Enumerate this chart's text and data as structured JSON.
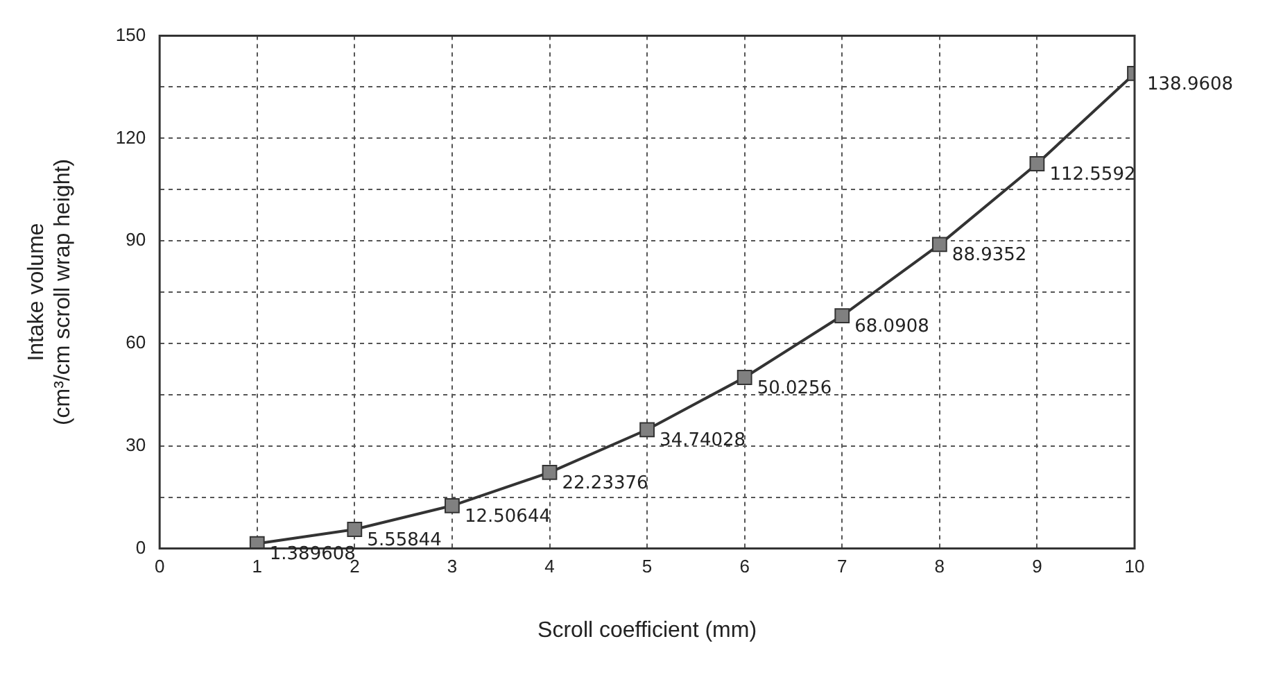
{
  "chart_data": {
    "type": "line",
    "xlabel": "Scroll coefficient (mm)",
    "ylabel": "Intake volume\n(cm³/cm scroll wrap height)",
    "x": [
      1,
      2,
      3,
      4,
      5,
      6,
      7,
      8,
      9,
      10
    ],
    "series": [
      {
        "color": "#808080",
        "values": [
          1.389608,
          5.55844,
          12.50644,
          22.23376,
          34.74028,
          50.0256,
          68.0908,
          88.9352,
          112.5592,
          138.9608
        ]
      }
    ],
    "xlim": [
      0,
      10
    ],
    "xticks": [
      0,
      1,
      2,
      3,
      4,
      5,
      6,
      7,
      8,
      9,
      10
    ],
    "ylim": [
      0,
      150
    ],
    "yticks": [
      0,
      {
        "value": 15,
        "label": null
      },
      30,
      {
        "value": 45,
        "label": null
      },
      60,
      {
        "value": 75,
        "label": null
      },
      90,
      {
        "value": 105,
        "label": null
      },
      120,
      {
        "value": 135,
        "label": null
      },
      150
    ],
    "grid": true,
    "legend": false,
    "marker": "square",
    "line_style": "solid",
    "data_labels": true
  }
}
